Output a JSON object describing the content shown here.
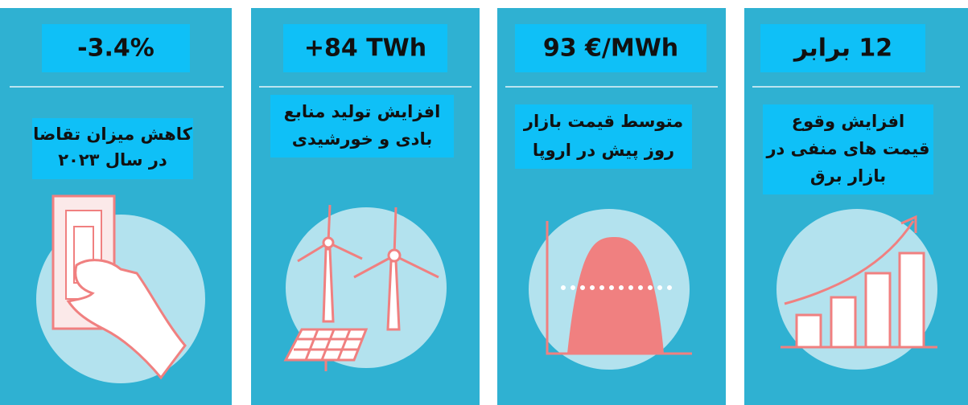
{
  "cards": [
    {
      "stat": "-3.4%",
      "label": [
        "کاهش میزان تقاضا",
        "در سال ۲۰۲۳"
      ]
    },
    {
      "stat": "+84 TWh",
      "label": [
        "افزایش تولید منابع",
        "بادی و خورشیدی"
      ]
    },
    {
      "stat": "93 €/MWh",
      "label": [
        "متوسط قیمت بازار",
        "روز پیش در اروپا"
      ]
    },
    {
      "stat": "12 برابر",
      "label": [
        "افزایش وقوع",
        "قیمت های منفی در",
        "بازار برق"
      ]
    }
  ]
}
